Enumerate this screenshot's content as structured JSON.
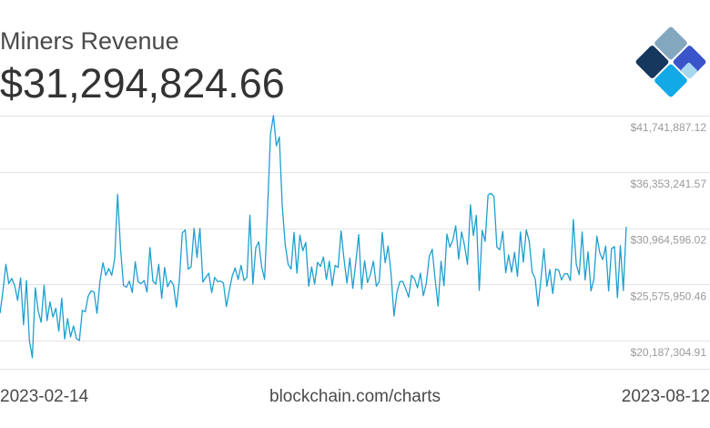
{
  "header": {
    "title": "Miners Revenue",
    "current_value": "$31,294,824.66"
  },
  "logo": {
    "icon": "blockchain-logo-icon"
  },
  "footer": {
    "start_date": "2023-02-14",
    "source": "blockchain.com/charts",
    "end_date": "2023-08-12"
  },
  "colors": {
    "line": "#1e9fd0",
    "grid": "#e3e3e3",
    "tick_label": "#9a9a9a"
  },
  "chart_data": {
    "type": "line",
    "title": "Miners Revenue",
    "x_start": "2023-02-14",
    "x_end": "2023-08-12",
    "ylim": [
      17492982.14,
      41741887.12
    ],
    "yticks": [
      20187304.91,
      25575950.46,
      30964596.02,
      36353241.57,
      41741887.12
    ],
    "ytick_labels": [
      "$20,187,304.91",
      "$25,575,950.46",
      "$30,964,596.02",
      "$36,353,241.57",
      "$41,741,887.12"
    ],
    "grid": true,
    "series": [
      {
        "values": [
          22800000,
          24950000,
          27500000,
          25650000,
          26150000,
          25450000,
          24050000,
          26200000,
          21700000,
          25950000,
          20200000,
          18550000,
          25250000,
          23000000,
          21950000,
          25500000,
          22100000,
          23900000,
          22450000,
          23300000,
          21100000,
          24250000,
          20350000,
          22300000,
          20550000,
          21600000,
          20400000,
          20200000,
          23100000,
          22950000,
          24450000,
          24950000,
          24850000,
          22800000,
          25850000,
          27650000,
          26450000,
          27100000,
          26450000,
          28000000,
          34200000,
          29000000,
          25500000,
          25300000,
          25900000,
          24800000,
          27750000,
          25800000,
          25650000,
          25950000,
          24850000,
          29100000,
          25900000,
          25600000,
          27500000,
          24250000,
          27200000,
          25350000,
          25950000,
          25550000,
          23400000,
          25950000,
          30500000,
          30800000,
          27050000,
          27250000,
          30950000,
          28150000,
          30950000,
          25800000,
          26250000,
          26650000,
          24800000,
          26250000,
          25850000,
          25900000,
          25700000,
          23450000,
          25000000,
          26400000,
          27150000,
          26050000,
          27400000,
          25950000,
          26250000,
          32200000,
          25600000,
          29100000,
          29650000,
          27250000,
          26050000,
          32750000,
          39950000,
          41750000,
          38850000,
          39700000,
          33100000,
          29400000,
          27500000,
          27050000,
          30550000,
          26650000,
          30300000,
          28800000,
          29600000,
          25400000,
          27250000,
          25600000,
          27700000,
          27300000,
          28200000,
          26050000,
          27800000,
          25450000,
          27400000,
          27200000,
          30700000,
          28000000,
          25700000,
          28100000,
          25200000,
          27650000,
          30350000,
          25150000,
          27850000,
          25750000,
          26550000,
          27800000,
          25400000,
          25850000,
          30550000,
          27650000,
          29250000,
          26600000,
          22550000,
          24800000,
          25850000,
          25850000,
          25150000,
          24350000,
          26450000,
          26100000,
          25250000,
          26650000,
          24500000,
          25700000,
          28250000,
          28950000,
          26050000,
          23500000,
          27800000,
          25450000,
          30400000,
          29150000,
          29800000,
          31200000,
          28000000,
          30600000,
          29300000,
          27500000,
          33200000,
          30250000,
          32200000,
          25000000,
          30750000,
          29700000,
          34150000,
          34300000,
          34000000,
          29150000,
          28900000,
          30650000,
          26700000,
          28400000,
          26750000,
          28650000,
          26350000,
          30600000,
          27700000,
          30800000,
          29700000,
          26750000,
          26150000,
          23500000,
          26100000,
          29000000,
          25400000,
          27000000,
          24700000,
          27050000,
          26950000,
          26000000,
          26600000,
          26600000,
          25950000,
          31800000,
          27500000,
          26500000,
          30600000,
          26000000,
          28700000,
          24950000,
          26100000,
          30200000,
          28600000,
          27950000,
          29250000,
          24950000,
          29000000,
          29200000,
          24300000,
          29300000,
          25000000,
          31100000
        ]
      }
    ]
  }
}
